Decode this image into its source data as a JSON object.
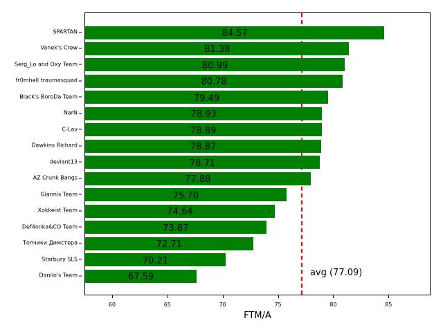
{
  "chart_data": {
    "type": "bar",
    "orientation": "horizontal",
    "title": "",
    "xlabel": "FTM/A",
    "ylabel": "",
    "xlim": [
      57.5,
      88.8
    ],
    "xticks": [
      60,
      65,
      70,
      75,
      80,
      85
    ],
    "grid": false,
    "bar_color": "#008000",
    "categories": [
      "SPARTAN",
      "Vanek's Crew",
      "Serg_Lo and Oxy Team",
      "fr0mhell traumasquad",
      "Black's BoroDa Team",
      "NarN",
      "C-Lav",
      "Dawkins Richard",
      "deviant13",
      "AZ Crunk Bangs",
      "Giannis Team",
      "Xokkeist Team",
      "Def4onka&CO Team",
      "Топчики Димстера",
      "Starbury SLS",
      "Danilo's Team"
    ],
    "values": [
      84.57,
      81.38,
      80.99,
      80.78,
      79.49,
      78.93,
      78.89,
      78.87,
      78.71,
      77.88,
      75.7,
      74.64,
      73.87,
      72.71,
      70.21,
      67.59
    ],
    "value_labels": [
      "84.57",
      "81.38",
      "80.99",
      "80.78",
      "79.49",
      "78.93",
      "78.89",
      "78.87",
      "78.71",
      "77.88",
      "75.70",
      "74.64",
      "73.87",
      "72.71",
      "70.21",
      "67.59"
    ],
    "reference_line": {
      "value": 77.09,
      "label": "avg (77.09)",
      "color": "#ff0000",
      "style": "dashed"
    }
  }
}
